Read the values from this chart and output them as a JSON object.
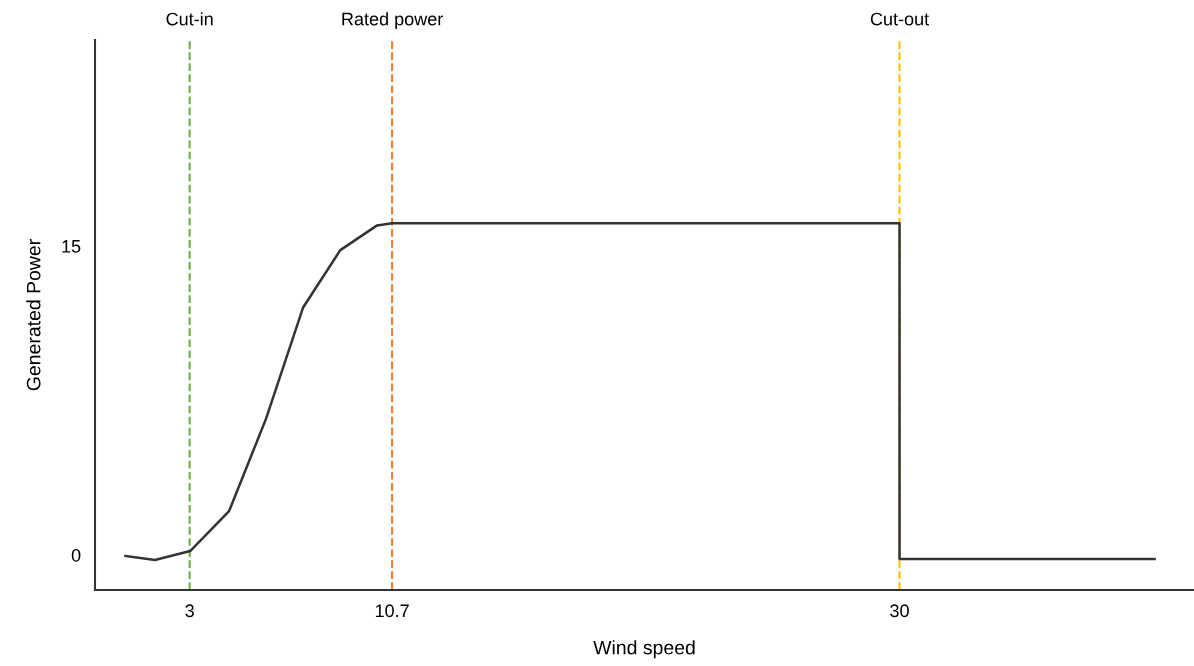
{
  "chart_data": {
    "type": "line",
    "xlabel": "Wind speed",
    "ylabel": "Generated Power",
    "x": [
      0.56,
      1.68,
      3.02,
      4.5,
      5.91,
      7.31,
      8.73,
      10.13,
      10.7,
      30,
      30,
      39.7
    ],
    "series": [
      {
        "color": "#333333",
        "values": [
          -0.05,
          -0.24,
          0.19,
          2.13,
          6.63,
          12.0,
          14.8,
          16.0,
          16.1,
          16.1,
          -0.2,
          -0.2
        ]
      }
    ],
    "xlim": [
      -0.6,
      41.2
    ],
    "ylim": [
      -1.7,
      25
    ],
    "xticks": [
      3,
      10.7,
      30
    ],
    "yticks": [
      0,
      15
    ],
    "ref_lines": [
      {
        "axis": "x",
        "value": 3,
        "label": "Cut-in",
        "color": "#70ad47",
        "line_style": "dashed"
      },
      {
        "axis": "x",
        "value": 10.7,
        "label": "Rated power",
        "color": "#ed7d31",
        "line_style": "dashed"
      },
      {
        "axis": "x",
        "value": 30,
        "label": "Cut-out",
        "color": "#ffc000",
        "line_style": "dashed"
      }
    ],
    "grid": false,
    "legend": false,
    "marker": "none",
    "line_style": "solid"
  }
}
